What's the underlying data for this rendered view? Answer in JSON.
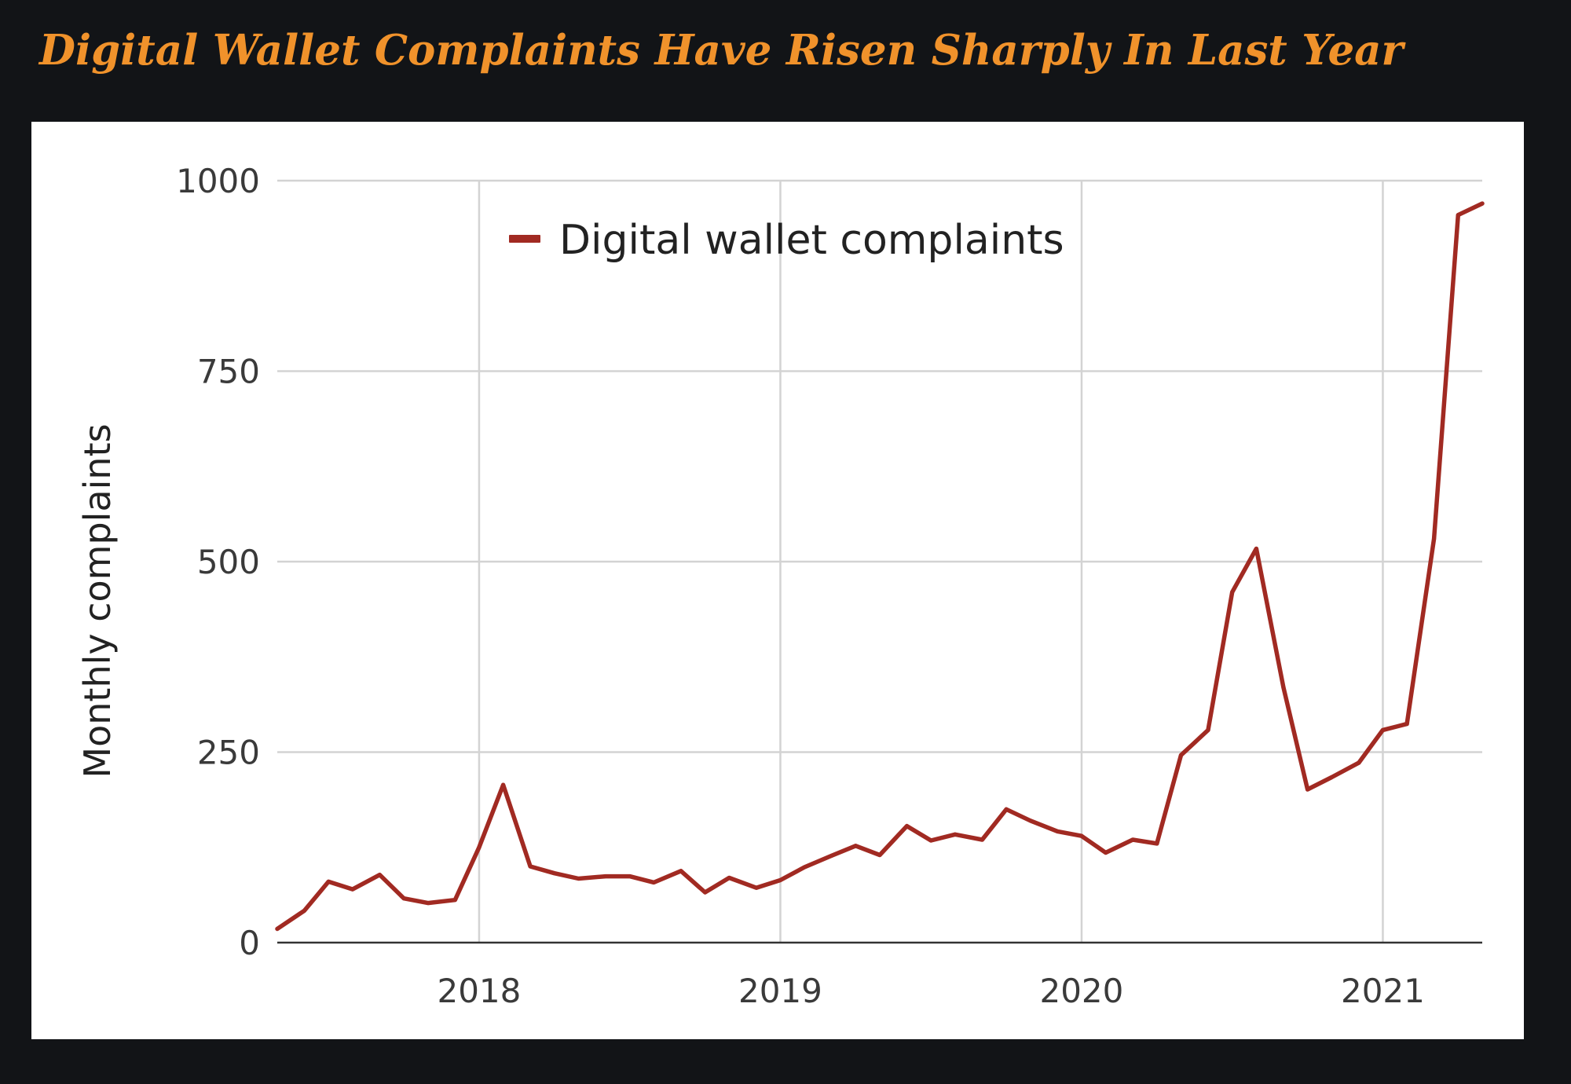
{
  "header": {
    "title": "Digital Wallet Complaints Have Risen Sharply In Last Year",
    "title_color": "#f0922b"
  },
  "chart_data": {
    "type": "line",
    "title": "Digital Wallet Complaints Have Risen Sharply In Last Year",
    "xlabel": "",
    "ylabel": "Monthly complaints",
    "ylim": [
      0,
      1000
    ],
    "xlim": [
      2017.33,
      2021.33
    ],
    "yticks": [
      "0",
      "250",
      "500",
      "750",
      "1000"
    ],
    "xticks": [
      {
        "value": 2018,
        "label": "2018"
      },
      {
        "value": 2019,
        "label": "2019"
      },
      {
        "value": 2020,
        "label": "2020"
      },
      {
        "value": 2021,
        "label": "2021"
      }
    ],
    "grid": true,
    "legend_position": "top-left",
    "series": [
      {
        "name": "Digital wallet complaints",
        "color": "#a12a22",
        "x": [
          2017.33,
          2017.42,
          2017.5,
          2017.58,
          2017.67,
          2017.75,
          2017.83,
          2017.92,
          2018.0,
          2018.08,
          2018.17,
          2018.25,
          2018.33,
          2018.42,
          2018.5,
          2018.58,
          2018.67,
          2018.75,
          2018.83,
          2018.92,
          2019.0,
          2019.08,
          2019.17,
          2019.25,
          2019.33,
          2019.42,
          2019.5,
          2019.58,
          2019.67,
          2019.75,
          2019.83,
          2019.92,
          2020.0,
          2020.08,
          2020.17,
          2020.25,
          2020.33,
          2020.42,
          2020.5,
          2020.58,
          2020.67,
          2020.75,
          2020.83,
          2020.92,
          2021.0,
          2021.08,
          2021.17,
          2021.25,
          2021.33
        ],
        "values": [
          18,
          42,
          80,
          70,
          89,
          58,
          52,
          56,
          125,
          207,
          100,
          91,
          84,
          87,
          87,
          79,
          94,
          66,
          85,
          72,
          82,
          99,
          114,
          127,
          115,
          153,
          134,
          142,
          135,
          175,
          160,
          146,
          140,
          118,
          135,
          130,
          246,
          279,
          460,
          517,
          335,
          201,
          217,
          236,
          279,
          287,
          530,
          955,
          970
        ]
      }
    ]
  }
}
